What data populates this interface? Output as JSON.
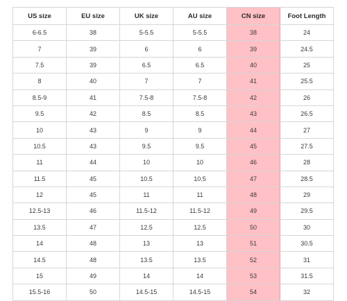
{
  "table": {
    "headers": [
      "US size",
      "EU size",
      "UK size",
      "AU size",
      "CN size",
      "Foot Length"
    ],
    "highlight_color": "#ffc0c6",
    "rows": [
      [
        "6-6.5",
        "38",
        "5-5.5",
        "5-5.5",
        "38",
        "24"
      ],
      [
        "7",
        "39",
        "6",
        "6",
        "39",
        "24.5"
      ],
      [
        "7.5",
        "39",
        "6.5",
        "6.5",
        "40",
        "25"
      ],
      [
        "8",
        "40",
        "7",
        "7",
        "41",
        "25.5"
      ],
      [
        "8.5-9",
        "41",
        "7.5-8",
        "7.5-8",
        "42",
        "26"
      ],
      [
        "9.5",
        "42",
        "8.5",
        "8.5",
        "43",
        "26.5"
      ],
      [
        "10",
        "43",
        "9",
        "9",
        "44",
        "27"
      ],
      [
        "10.5",
        "43",
        "9.5",
        "9.5",
        "45",
        "27.5"
      ],
      [
        "11",
        "44",
        "10",
        "10",
        "46",
        "28"
      ],
      [
        "11.5",
        "45",
        "10.5",
        "10.5",
        "47",
        "28.5"
      ],
      [
        "12",
        "45",
        "11",
        "11",
        "48",
        "29"
      ],
      [
        "12.5-13",
        "46",
        "11.5-12",
        "11.5-12",
        "49",
        "29.5"
      ],
      [
        "13.5",
        "47",
        "12.5",
        "12.5",
        "50",
        "30"
      ],
      [
        "14",
        "48",
        "13",
        "13",
        "51",
        "30.5"
      ],
      [
        "14.5",
        "48",
        "13.5",
        "13.5",
        "52",
        "31"
      ],
      [
        "15",
        "49",
        "14",
        "14",
        "53",
        "31.5"
      ],
      [
        "15.5-16",
        "50",
        "14.5-15",
        "14.5-15",
        "54",
        "32"
      ]
    ]
  }
}
